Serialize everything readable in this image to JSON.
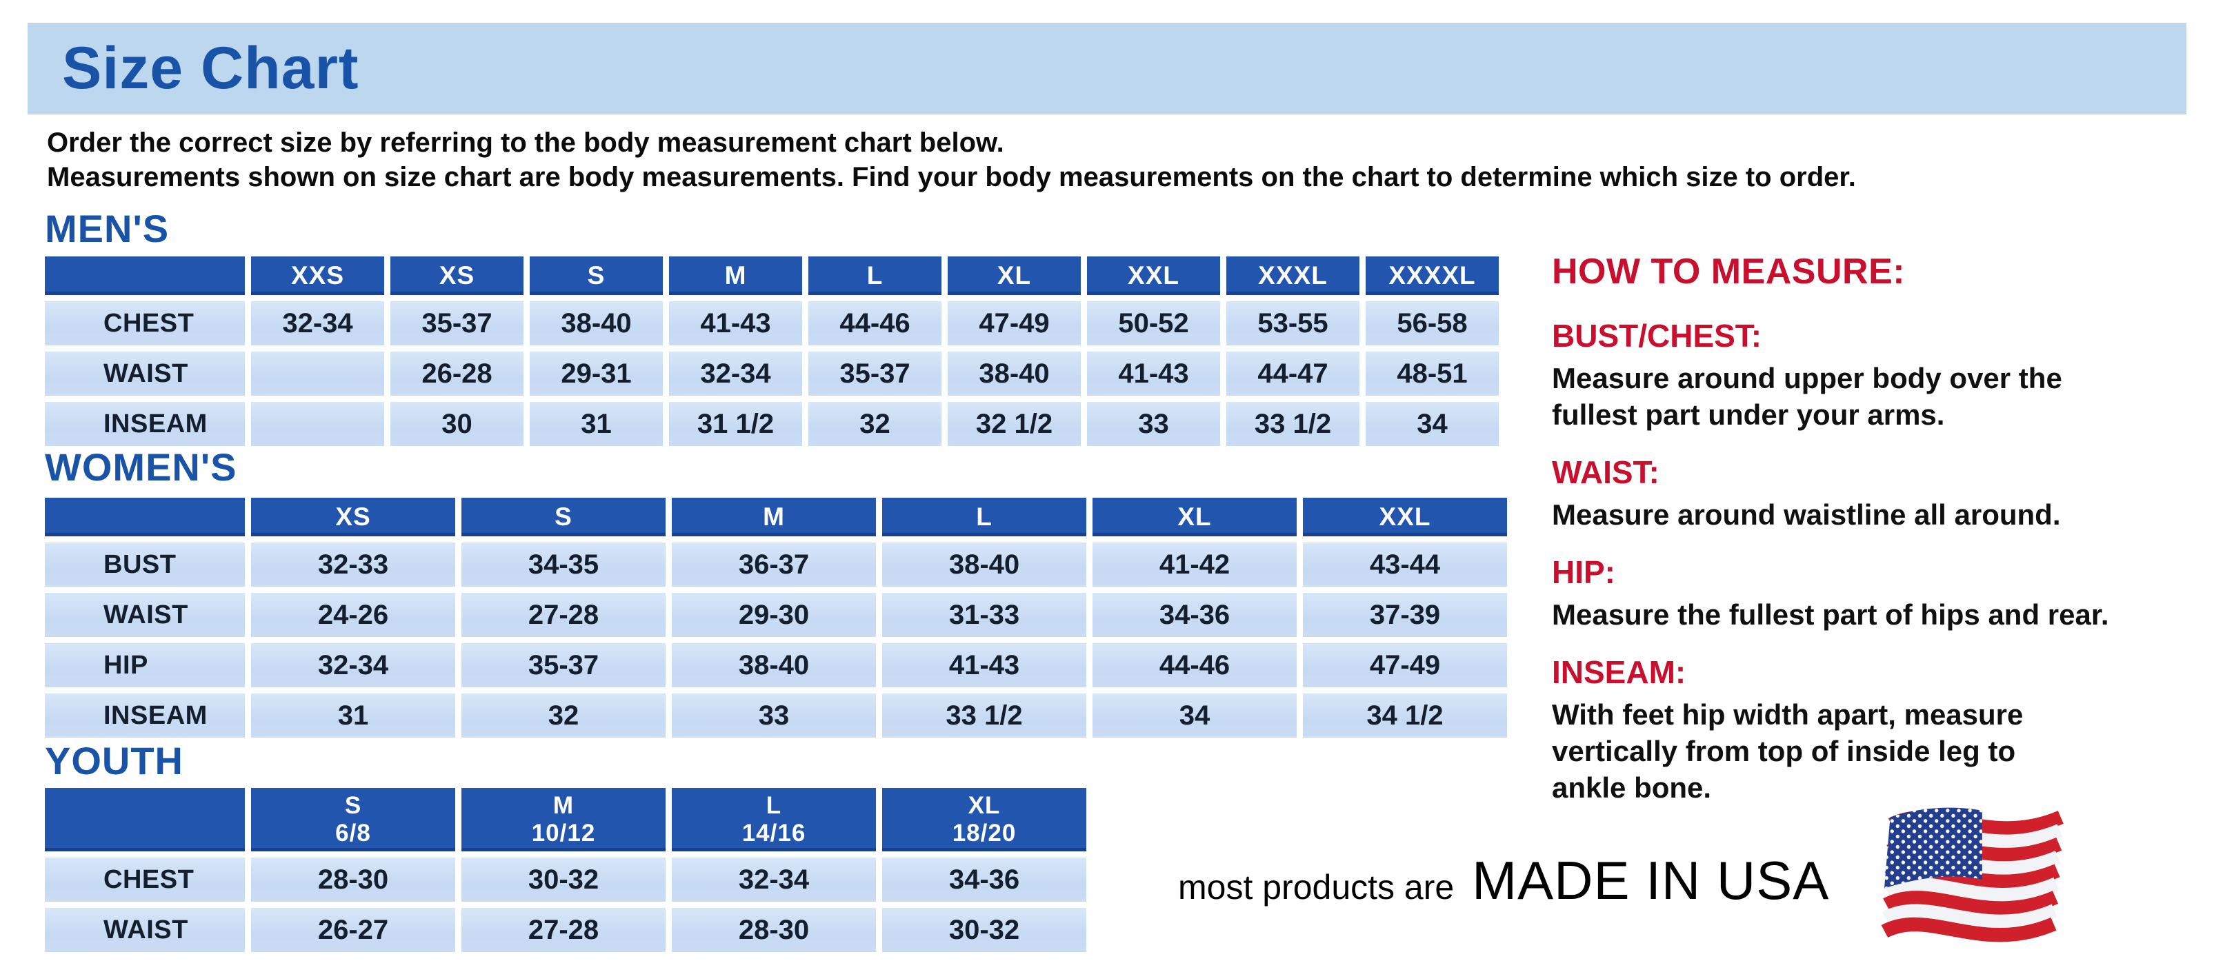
{
  "banner": {
    "title": "Size Chart"
  },
  "intro": {
    "line1": "Order the correct size by referring to the body measurement chart below.",
    "line2": "Measurements shown on size chart are body measurements.  Find your body measurements on the chart to determine which size to order."
  },
  "tables": {
    "mens": {
      "heading": "MEN'S",
      "columns": [
        "XXS",
        "XS",
        "S",
        "M",
        "L",
        "XL",
        "XXL",
        "XXXL",
        "XXXXL"
      ],
      "rows": [
        {
          "label": "CHEST",
          "values": [
            "32-34",
            "35-37",
            "38-40",
            "41-43",
            "44-46",
            "47-49",
            "50-52",
            "53-55",
            "56-58"
          ]
        },
        {
          "label": "WAIST",
          "values": [
            "",
            "26-28",
            "29-31",
            "32-34",
            "35-37",
            "38-40",
            "41-43",
            "44-47",
            "48-51"
          ]
        },
        {
          "label": "INSEAM",
          "values": [
            "",
            "30",
            "31",
            "31 1/2",
            "32",
            "32 1/2",
            "33",
            "33 1/2",
            "34"
          ]
        }
      ]
    },
    "womens": {
      "heading": "WOMEN'S",
      "columns": [
        "XS",
        "S",
        "M",
        "L",
        "XL",
        "XXL"
      ],
      "rows": [
        {
          "label": "BUST",
          "values": [
            "32-33",
            "34-35",
            "36-37",
            "38-40",
            "41-42",
            "43-44"
          ]
        },
        {
          "label": "WAIST",
          "values": [
            "24-26",
            "27-28",
            "29-30",
            "31-33",
            "34-36",
            "37-39"
          ]
        },
        {
          "label": "HIP",
          "values": [
            "32-34",
            "35-37",
            "38-40",
            "41-43",
            "44-46",
            "47-49"
          ]
        },
        {
          "label": "INSEAM",
          "values": [
            "31",
            "32",
            "33",
            "33 1/2",
            "34",
            "34 1/2"
          ]
        }
      ]
    },
    "youth": {
      "heading": "YOUTH",
      "columns": [
        {
          "size": "S",
          "range": "6/8"
        },
        {
          "size": "M",
          "range": "10/12"
        },
        {
          "size": "L",
          "range": "14/16"
        },
        {
          "size": "XL",
          "range": "18/20"
        }
      ],
      "rows": [
        {
          "label": "CHEST",
          "values": [
            "28-30",
            "30-32",
            "32-34",
            "34-36"
          ]
        },
        {
          "label": "WAIST",
          "values": [
            "26-27",
            "27-28",
            "28-30",
            "30-32"
          ]
        }
      ]
    }
  },
  "how_to_measure": {
    "heading": "HOW TO MEASURE:",
    "items": [
      {
        "label": "BUST/CHEST:",
        "text": "Measure around upper body over the\nfullest part under your arms."
      },
      {
        "label": "WAIST:",
        "text": "Measure around waistline all around."
      },
      {
        "label": "HIP:",
        "text": "Measure the fullest part of hips and rear."
      },
      {
        "label": "INSEAM:",
        "text": "With feet hip width apart, measure\nvertically from top of inside leg to\nankle bone."
      }
    ]
  },
  "footer": {
    "prefix": "most products are",
    "emphasis": "MADE IN USA",
    "flag_icon": "us-flag-icon"
  },
  "colors": {
    "banner_bg": "#bdd7ee",
    "title_blue": "#1953a8",
    "header_blue": "#2155ae",
    "cell_blue": "#c9dcf4",
    "text_dark": "#141e2e",
    "accent_red": "#c8102e",
    "flag_red": "#d0202c",
    "flag_blue": "#223e8d"
  }
}
